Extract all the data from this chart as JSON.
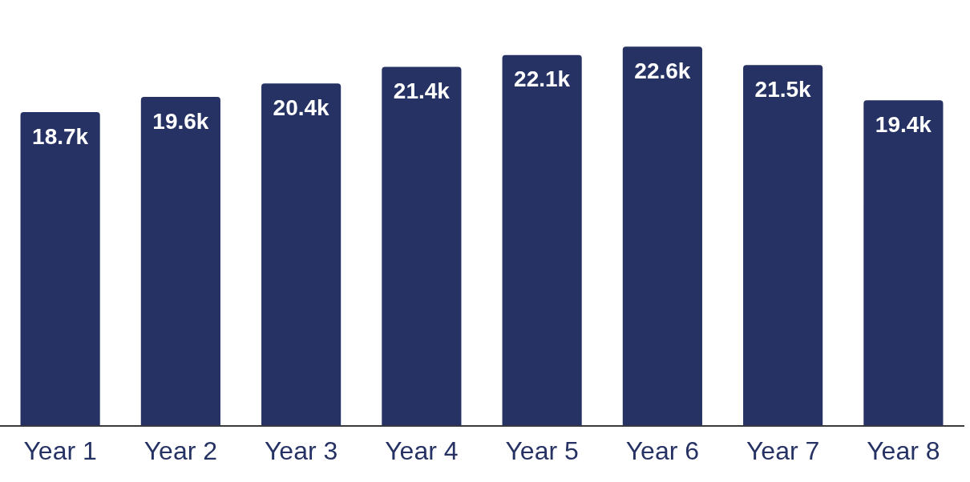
{
  "chart_data": {
    "type": "bar",
    "categories": [
      "Year 1",
      "Year 2",
      "Year 3",
      "Year 4",
      "Year 5",
      "Year 6",
      "Year 7",
      "Year 8"
    ],
    "values": [
      18700,
      19600,
      20400,
      21400,
      22100,
      22600,
      21500,
      19400
    ],
    "value_labels": [
      "18.7k",
      "19.6k",
      "20.4k",
      "21.4k",
      "22.1k",
      "22.6k",
      "21.5k",
      "19.4k"
    ],
    "color": "#253263",
    "grid": false,
    "legend": false
  }
}
